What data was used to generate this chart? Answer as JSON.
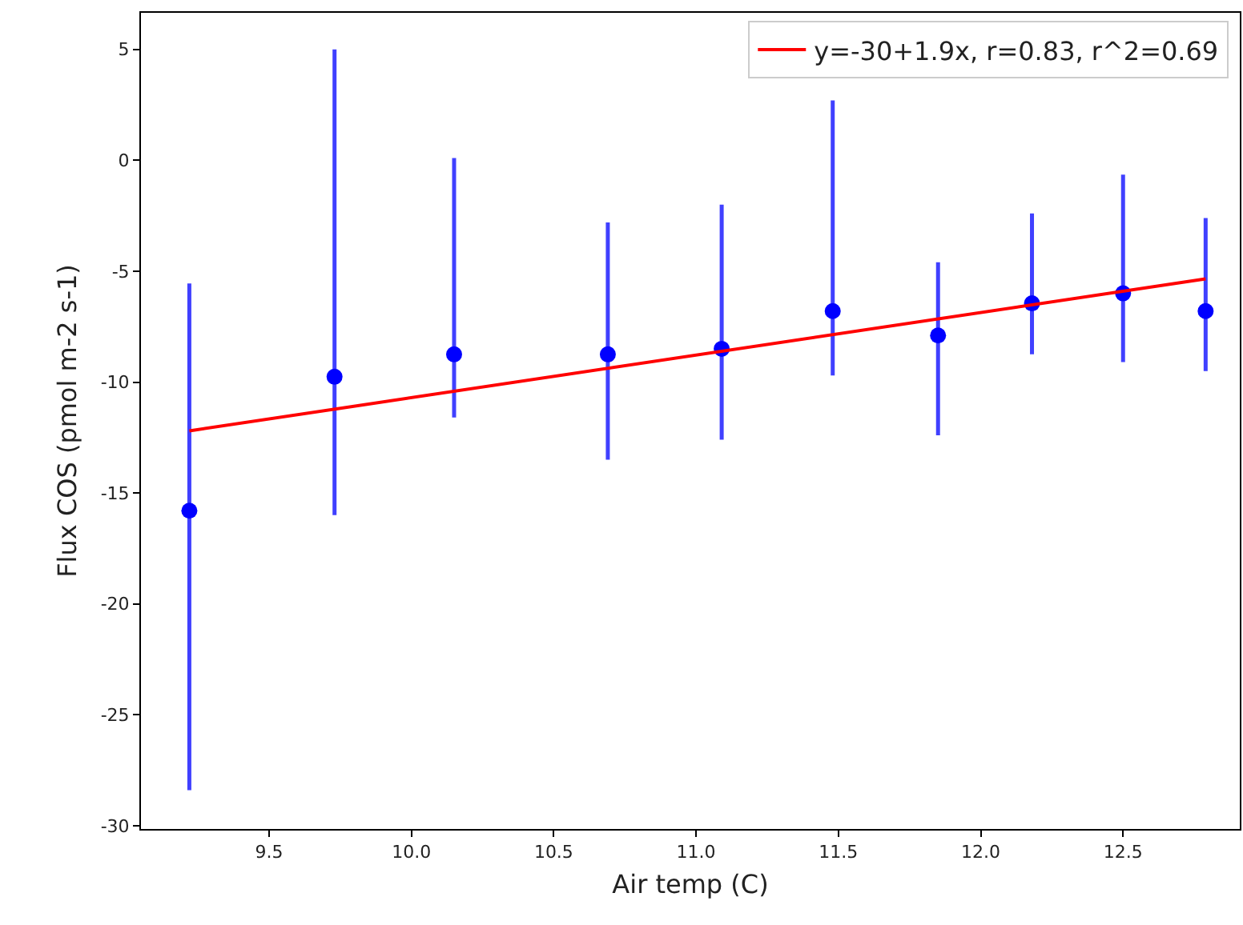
{
  "chart_data": {
    "type": "scatter",
    "xlabel": "Air temp (C)",
    "ylabel": "Flux COS (pmol m-2 s-1)",
    "xlim": [
      9.05,
      12.91
    ],
    "xticks": [
      9.5,
      {
        "value": 10,
        "label": "10.0"
      },
      10.5,
      {
        "value": 11,
        "label": "11.0"
      },
      11.5,
      {
        "value": 12,
        "label": "12.0"
      },
      12.5
    ],
    "ylim": [
      -30.15,
      6.65
    ],
    "yticks": [
      -30,
      -25,
      -20,
      -15,
      -10,
      -5,
      0,
      5
    ],
    "grid": false,
    "legend": "top right",
    "series": [
      {
        "marker": "circle",
        "color": "#0000ff",
        "x": [
          9.22,
          9.73,
          10.15,
          10.69,
          11.09,
          11.48,
          11.85,
          12.18,
          12.5,
          12.79
        ],
        "values": [
          -15.8,
          -9.76,
          -8.75,
          -8.75,
          -8.5,
          -6.8,
          -7.9,
          -6.45,
          -6.0,
          -6.8
        ],
        "errors": [
          [
            -28.4,
            -5.55
          ],
          [
            -16.0,
            5.0
          ],
          [
            -11.6,
            0.1
          ],
          [
            -13.5,
            -2.8
          ],
          [
            -12.6,
            -2.0
          ],
          [
            -9.7,
            2.7
          ],
          [
            -12.4,
            -4.6
          ],
          [
            -8.75,
            -2.4
          ],
          [
            -9.1,
            -0.65
          ],
          [
            -9.5,
            -2.6
          ]
        ]
      },
      {
        "type": "line",
        "name": "y=-30+1.9x, r=0.83, r^2=0.69",
        "color": "#ff0000",
        "line_style": "solid",
        "marker": "none",
        "x": [
          9.22,
          12.79
        ],
        "values": [
          -12.2,
          -5.35
        ]
      }
    ]
  }
}
